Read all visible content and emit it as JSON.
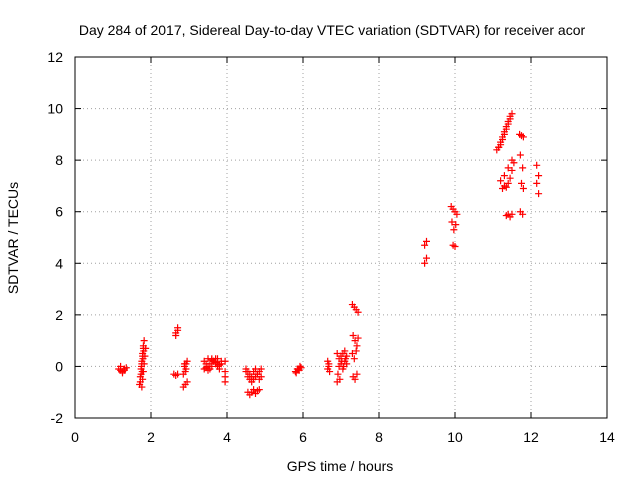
{
  "chart_data": {
    "type": "scatter",
    "title": "Day 284 of 2017, Sidereal Day-to-day VTEC variation (SDTVAR) for receiver acor",
    "xlabel": "GPS time / hours",
    "ylabel": "SDTVAR / TECUs",
    "xlim": [
      0,
      14
    ],
    "ylim": [
      -2,
      12
    ],
    "xticks": [
      "0",
      "2",
      "4",
      "6",
      "8",
      "10",
      "12",
      "14"
    ],
    "yticks": [
      "-2",
      "0",
      "2",
      "4",
      "6",
      "8",
      "10",
      "12"
    ],
    "grid": true,
    "legend": "none",
    "marker": "plus",
    "color": "#ff0000",
    "series": [
      {
        "x": [
          1.15,
          1.2,
          1.25,
          1.3,
          1.35,
          1.2,
          1.25,
          1.3,
          1.7,
          1.72,
          1.74,
          1.76,
          1.78,
          1.8,
          1.82,
          1.72,
          1.74,
          1.76,
          1.78,
          1.8,
          1.75,
          1.77,
          1.79,
          1.81,
          1.76,
          1.78,
          1.8,
          1.82,
          1.84,
          1.86,
          2.65,
          2.7,
          2.65,
          2.7,
          2.6,
          2.65,
          2.7,
          2.85,
          2.9,
          2.95,
          2.88,
          2.92,
          2.85,
          2.9,
          2.95,
          2.88,
          2.92,
          3.4,
          3.45,
          3.5,
          3.55,
          3.6,
          3.65,
          3.7,
          3.75,
          3.8,
          3.85,
          3.4,
          3.5,
          3.6,
          3.7,
          3.8,
          3.45,
          3.55,
          3.65,
          3.75,
          3.85,
          3.5,
          3.6,
          3.7,
          3.95,
          3.95,
          3.95,
          3.95,
          4.5,
          4.55,
          4.6,
          4.65,
          4.7,
          4.75,
          4.8,
          4.85,
          4.9,
          4.55,
          4.6,
          4.65,
          4.7,
          4.75,
          4.8,
          4.85,
          4.5,
          4.55,
          4.6,
          4.65,
          4.7,
          4.75,
          4.8,
          4.85,
          4.9,
          5.8,
          5.85,
          5.9,
          5.95,
          5.82,
          5.88,
          5.92,
          6.65,
          6.68,
          6.7,
          6.65,
          6.68,
          6.9,
          6.95,
          7.0,
          7.05,
          7.1,
          7.15,
          6.92,
          6.97,
          7.02,
          7.07,
          7.12,
          6.9,
          6.95,
          7.0,
          7.05,
          7.1,
          7.15,
          7.3,
          7.35,
          7.4,
          7.45,
          7.32,
          7.37,
          7.42,
          7.3,
          7.35,
          7.4,
          7.45,
          7.32,
          7.37,
          7.42,
          9.2,
          9.25,
          9.2,
          9.25,
          9.9,
          9.95,
          10.0,
          10.05,
          9.92,
          9.97,
          10.02,
          9.95,
          10.0,
          11.1,
          11.15,
          11.2,
          11.25,
          11.3,
          11.35,
          11.4,
          11.45,
          11.5,
          11.15,
          11.2,
          11.25,
          11.3,
          11.35,
          11.4,
          11.45,
          11.2,
          11.3,
          11.4,
          11.5,
          11.25,
          11.3,
          11.35,
          11.4,
          11.45,
          11.5,
          11.55,
          11.35,
          11.4,
          11.45,
          11.5,
          11.7,
          11.75,
          11.8,
          11.72,
          11.78,
          11.75,
          11.8,
          11.72,
          11.78,
          12.15,
          12.2,
          12.15,
          12.2
        ],
        "y": [
          -0.1,
          -0.15,
          -0.2,
          -0.1,
          -0.05,
          0.0,
          -0.25,
          -0.15,
          -0.7,
          -0.4,
          -0.1,
          0.2,
          0.5,
          0.8,
          1.0,
          -0.6,
          -0.3,
          0.1,
          0.4,
          0.7,
          0.0,
          -0.2,
          0.3,
          0.6,
          -0.8,
          -0.5,
          -0.2,
          0.1,
          0.4,
          0.7,
          1.2,
          1.4,
          1.3,
          1.5,
          -0.3,
          -0.35,
          -0.3,
          -0.8,
          -0.7,
          -0.6,
          0.0,
          0.1,
          -0.3,
          -0.2,
          0.2,
          0.1,
          -0.1,
          0.2,
          0.1,
          0.0,
          -0.1,
          0.3,
          0.2,
          0.1,
          0.0,
          -0.1,
          0.2,
          -0.1,
          0.3,
          0.25,
          0.15,
          0.05,
          -0.05,
          0.1,
          0.2,
          0.3,
          0.1,
          -0.15,
          0.0,
          0.3,
          0.2,
          -0.2,
          -0.4,
          -0.6,
          -0.1,
          -0.2,
          -0.3,
          -0.4,
          -0.2,
          -0.1,
          -0.3,
          -0.5,
          -0.4,
          -1.0,
          -1.1,
          -1.0,
          -0.9,
          -1.05,
          -0.95,
          -0.9,
          -0.2,
          -0.4,
          -0.5,
          -0.6,
          -0.5,
          -0.4,
          -0.3,
          -0.2,
          -0.1,
          -0.2,
          -0.1,
          -0.15,
          -0.05,
          -0.25,
          -0.1,
          0.0,
          0.2,
          0.0,
          -0.2,
          -0.1,
          0.1,
          0.5,
          0.3,
          0.1,
          -0.1,
          0.6,
          0.4,
          -0.3,
          -0.5,
          0.2,
          0.0,
          0.3,
          -0.6,
          0.0,
          0.4,
          0.5,
          0.2,
          0.1,
          2.4,
          2.3,
          2.2,
          2.1,
          1.2,
          1.0,
          0.8,
          0.5,
          0.3,
          0.6,
          1.1,
          -0.4,
          -0.5,
          -0.3,
          4.0,
          4.2,
          4.7,
          4.85,
          6.2,
          6.1,
          6.0,
          5.9,
          5.6,
          5.3,
          5.5,
          4.7,
          4.65,
          8.4,
          8.5,
          8.7,
          8.9,
          9.1,
          9.3,
          9.5,
          9.7,
          9.8,
          8.5,
          8.6,
          8.8,
          9.0,
          9.2,
          9.4,
          9.6,
          7.2,
          7.4,
          7.7,
          8.0,
          6.9,
          7.0,
          6.95,
          7.1,
          7.3,
          7.6,
          7.9,
          5.85,
          5.9,
          5.8,
          5.9,
          9.0,
          8.95,
          8.9,
          8.2,
          7.7,
          7.1,
          6.9,
          6.0,
          5.9,
          7.8,
          7.4,
          7.1,
          6.7
        ]
      }
    ]
  }
}
